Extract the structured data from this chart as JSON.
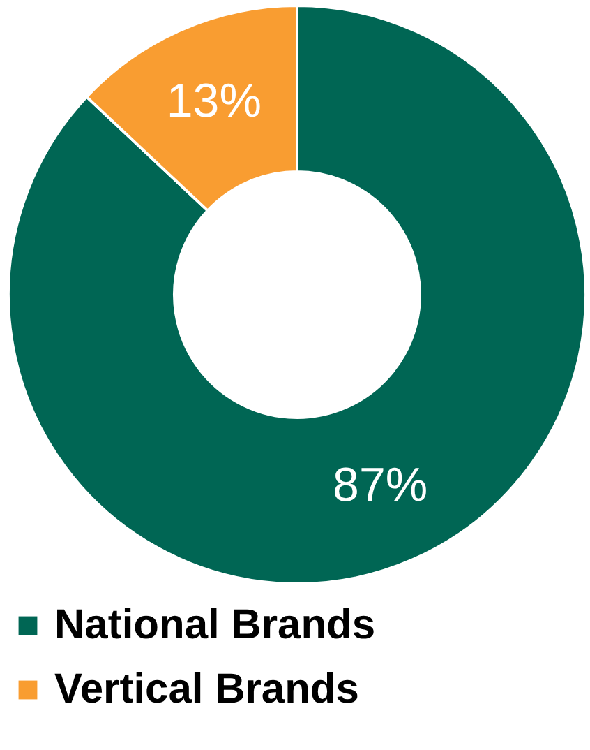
{
  "chart_data": {
    "type": "donut",
    "categories": [
      "National Brands",
      "Vertical Brands"
    ],
    "values": [
      87,
      13
    ],
    "colors": [
      "#006654",
      "#f99d31"
    ],
    "value_labels": [
      "87%",
      "13%"
    ],
    "legend": "bottom"
  }
}
